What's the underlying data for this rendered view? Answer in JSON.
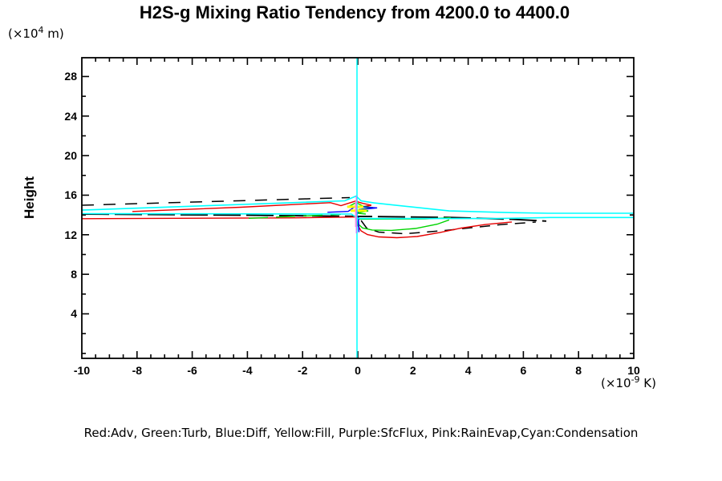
{
  "title": "H2S-g Mixing Ratio Tendency from 4200.0 to 4400.0",
  "y_axis_title": "Height",
  "y_unit": {
    "prefix": "(×10",
    "exp": "4",
    "suffix": " m)"
  },
  "x_unit": {
    "prefix": "(×10",
    "exp": "-9",
    "suffix": " K)"
  },
  "legend_text": "Red:Adv, Green:Turb, Blue:Diff, Yellow:Fill, Purple:SfcFlux, Pink:RainEvap,Cyan:Condensation",
  "colors": {
    "adv_red": "#e60000",
    "turb_green": "#00d400",
    "diff_blue": "#0000ff",
    "fill_yellow": "#ffff00",
    "sfcflux_purple": "#c77dff",
    "rainevap_pink": "#ff9ad5",
    "condensation_cyan": "#00ffff",
    "net_black": "#000000",
    "axis": "#000000"
  },
  "chart_data": {
    "type": "line",
    "title": "H2S-g Mixing Ratio Tendency from 4200.0 to 4400.0",
    "xlabel": "(x10^-9 K)",
    "ylabel": "Height (x10^4 m)",
    "x_range": [
      -10,
      10
    ],
    "y_range": [
      -0.5,
      29.9
    ],
    "grid": false,
    "legend_position": "bottom-text-line",
    "x_ticks": [
      {
        "v": -10,
        "label": "-10"
      },
      {
        "v": -8,
        "label": "-8"
      },
      {
        "v": -6,
        "label": "-6"
      },
      {
        "v": -4,
        "label": "-4"
      },
      {
        "v": -2,
        "label": "-2"
      },
      {
        "v": 0,
        "label": "0"
      },
      {
        "v": 2,
        "label": "2"
      },
      {
        "v": 4,
        "label": "4"
      },
      {
        "v": 6,
        "label": "6"
      },
      {
        "v": 8,
        "label": "8"
      },
      {
        "v": 10,
        "label": "10"
      }
    ],
    "y_ticks": [
      {
        "v": 4,
        "label": "4"
      },
      {
        "v": 8,
        "label": "8"
      },
      {
        "v": 12,
        "label": "12"
      },
      {
        "v": 16,
        "label": "16"
      },
      {
        "v": 20,
        "label": "20"
      },
      {
        "v": 24,
        "label": "24"
      },
      {
        "v": 28,
        "label": "28"
      }
    ],
    "x_minor_step": 0.5,
    "y_minor_step": 2,
    "series": [
      {
        "name": "net-upper-left-dashed",
        "legend": null,
        "color": "#000000",
        "width": 1.5,
        "dash": "15 12",
        "points": [
          [
            -10,
            14.98
          ],
          [
            -0.29,
            15.75
          ]
        ]
      },
      {
        "name": "net-mid-line",
        "legend": null,
        "color": "#000000",
        "width": 1.9,
        "dash": "34 7",
        "points": [
          [
            -10,
            14.09
          ],
          [
            -4.24,
            13.98
          ],
          [
            0.03,
            13.86
          ],
          [
            3.31,
            13.75
          ],
          [
            5.64,
            13.56
          ],
          [
            6.83,
            13.38
          ]
        ]
      },
      {
        "name": "net-lower-swoosh-dashed",
        "legend": null,
        "color": "#000000",
        "width": 1.5,
        "dash": "13 9",
        "points": [
          [
            0.12,
            13.44
          ],
          [
            0.32,
            12.67
          ],
          [
            0.76,
            12.27
          ],
          [
            1.72,
            12.1
          ],
          [
            3.31,
            12.47
          ],
          [
            5.2,
            13.03
          ],
          [
            6.45,
            13.28
          ]
        ]
      },
      {
        "name": "adv-left-wing",
        "legend": "Red:Adv",
        "color": "#e60000",
        "width": 1.4,
        "dash": null,
        "points": [
          [
            -10,
            13.62
          ],
          [
            -2.5,
            13.7
          ],
          [
            -0.09,
            13.79
          ]
        ]
      },
      {
        "name": "adv-upper-left-wing",
        "legend": "Red:Adv",
        "color": "#e60000",
        "width": 1.4,
        "dash": null,
        "points": [
          [
            -8.17,
            14.35
          ],
          [
            -4.24,
            14.78
          ],
          [
            -0.99,
            15.24
          ],
          [
            -0.61,
            14.94
          ],
          [
            -0.09,
            15.4
          ],
          [
            0.17,
            15.18
          ],
          [
            0.49,
            14.98
          ],
          [
            0,
            14.75
          ]
        ]
      },
      {
        "name": "adv-lower-swoosh",
        "legend": "Red:Adv",
        "color": "#e60000",
        "width": 1.4,
        "dash": null,
        "points": [
          [
            -0.06,
            13.64
          ],
          [
            0,
            12.95
          ],
          [
            0.12,
            12.39
          ],
          [
            0.35,
            12.02
          ],
          [
            0.76,
            11.78
          ],
          [
            1.42,
            11.7
          ],
          [
            2.15,
            11.82
          ],
          [
            2.97,
            12.22
          ],
          [
            3.75,
            12.67
          ],
          [
            4.62,
            13.03
          ],
          [
            5.58,
            13.29
          ]
        ]
      },
      {
        "name": "turb-left-wing-dashed",
        "legend": "Green:Turb",
        "color": "#00d400",
        "width": 1.4,
        "dash": "24 10",
        "points": [
          [
            -3.95,
            13.66
          ],
          [
            -0.61,
            14.06
          ]
        ]
      },
      {
        "name": "turb-center-zigzag",
        "legend": "Green:Turb",
        "color": "#00d400",
        "width": 1.4,
        "dash": null,
        "points": [
          [
            -0.38,
            14.79
          ],
          [
            -0.06,
            15.24
          ],
          [
            0.2,
            14.88
          ],
          [
            0.55,
            14.75
          ],
          [
            0.03,
            14.55
          ],
          [
            0.38,
            14.41
          ],
          [
            -0.06,
            14.19
          ],
          [
            0.29,
            14.09
          ]
        ]
      },
      {
        "name": "turb-right-flat",
        "legend": "Green:Turb",
        "color": "#00d400",
        "width": 1.4,
        "dash": null,
        "points": [
          [
            0,
            13.58
          ],
          [
            2.44,
            13.6
          ],
          [
            3.37,
            13.72
          ]
        ]
      },
      {
        "name": "turb-lower-swoosh",
        "legend": "Green:Turb",
        "color": "#00d400",
        "width": 1.4,
        "dash": null,
        "points": [
          [
            -0.06,
            13.74
          ],
          [
            0,
            13.12
          ],
          [
            0.17,
            12.69
          ],
          [
            0.52,
            12.48
          ],
          [
            1.22,
            12.44
          ],
          [
            2.09,
            12.63
          ],
          [
            2.88,
            13.07
          ],
          [
            3.31,
            13.5
          ]
        ]
      },
      {
        "name": "diff-center-zigzag",
        "legend": "Blue:Diff",
        "color": "#0000ff",
        "width": 1.4,
        "dash": null,
        "points": [
          [
            -1.1,
            14.27
          ],
          [
            -0.35,
            14.36
          ],
          [
            -0.15,
            14.75
          ],
          [
            -0.03,
            14.85
          ],
          [
            0.7,
            14.72
          ],
          [
            0.06,
            14.53
          ],
          [
            0,
            14.27
          ],
          [
            -0.03,
            13.99
          ]
        ]
      },
      {
        "name": "diff-down-spike",
        "legend": "Blue:Diff",
        "color": "#0000ff",
        "width": 1.6,
        "dash": null,
        "points": [
          [
            0.02,
            13.81
          ],
          [
            0.04,
            12.26
          ]
        ]
      },
      {
        "name": "fill-vertical-stub",
        "legend": "Yellow:Fill",
        "color": "#ffff00",
        "width": 2.2,
        "dash": null,
        "points": [
          [
            -0.06,
            15.43
          ],
          [
            -0.06,
            14.9
          ]
        ]
      },
      {
        "name": "fill-bar-upper",
        "legend": "Yellow:Fill",
        "color": "#ffff00",
        "width": 3,
        "dash": null,
        "points": [
          [
            -0.38,
            14.83
          ],
          [
            0.2,
            14.83
          ]
        ]
      },
      {
        "name": "fill-bar-lower",
        "legend": "Yellow:Fill",
        "color": "#ffff00",
        "width": 3,
        "dash": null,
        "points": [
          [
            -0.26,
            14.44
          ],
          [
            0.32,
            14.44
          ]
        ]
      },
      {
        "name": "condensation-main-wings",
        "legend": "Cyan:Condensation",
        "color": "#00ffff",
        "width": 1.6,
        "dash": null,
        "points": [
          [
            -10,
            14.49
          ],
          [
            -0.47,
            15.43
          ],
          [
            -0.06,
            15.91
          ],
          [
            0.12,
            15.43
          ],
          [
            0.58,
            15.22
          ],
          [
            3.31,
            14.41
          ],
          [
            5.35,
            14.25
          ],
          [
            6.89,
            14.17
          ],
          [
            10,
            14.17
          ]
        ]
      },
      {
        "name": "condensation-second-line",
        "legend": "Cyan:Condensation",
        "color": "#00ffff",
        "width": 1.6,
        "dash": null,
        "points": [
          [
            -10,
            14.13
          ],
          [
            -0.23,
            14.09
          ],
          [
            0,
            13.64
          ],
          [
            5.0,
            13.64
          ],
          [
            6.98,
            13.74
          ],
          [
            10,
            13.74
          ]
        ]
      },
      {
        "name": "condensation-zero-vertical",
        "legend": "Cyan:Condensation",
        "color": "#00ffff",
        "width": 1.5,
        "dash": null,
        "points": [
          [
            -0.03,
            -0.5
          ],
          [
            -0.03,
            29.9
          ]
        ]
      },
      {
        "name": "rainevap-zero-vertical",
        "legend": "Pink:RainEvap",
        "color": "#ff9ad5",
        "width": 1.3,
        "dash": null,
        "points": [
          [
            -0.08,
            15.39
          ],
          [
            -0.08,
            12.79
          ]
        ]
      },
      {
        "name": "sfcflux-zero-vertical",
        "legend": "Purple:SfcFlux",
        "color": "#c77dff",
        "width": 1.4,
        "dash": null,
        "points": [
          [
            -0.05,
            15.95
          ],
          [
            -0.05,
            12.14
          ]
        ]
      }
    ]
  }
}
